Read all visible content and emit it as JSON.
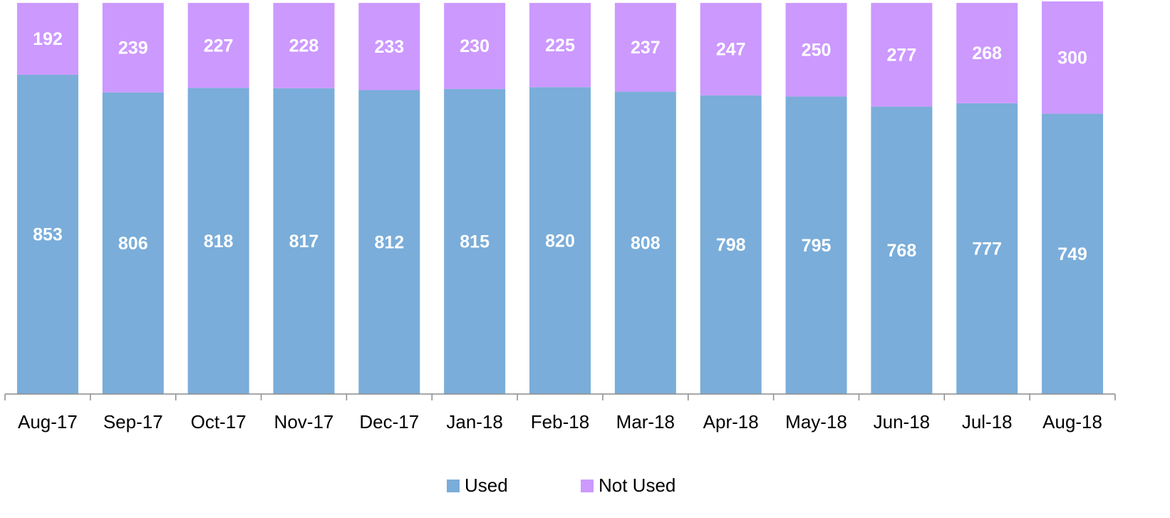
{
  "chart_data": {
    "type": "stacked_bar",
    "categories": [
      "Aug-17",
      "Sep-17",
      "Oct-17",
      "Nov-17",
      "Dec-17",
      "Jan-18",
      "Feb-18",
      "Mar-18",
      "Apr-18",
      "May-18",
      "Jun-18",
      "Jul-18",
      "Aug-18"
    ],
    "series": [
      {
        "name": "Used",
        "color": "#7aadd9",
        "values": [
          853,
          806,
          818,
          817,
          812,
          815,
          820,
          808,
          798,
          795,
          768,
          777,
          749
        ]
      },
      {
        "name": "Not Used",
        "color": "#cc99ff",
        "values": [
          192,
          239,
          227,
          228,
          233,
          230,
          225,
          237,
          247,
          250,
          277,
          268,
          300
        ]
      }
    ],
    "legend": "bottom"
  }
}
